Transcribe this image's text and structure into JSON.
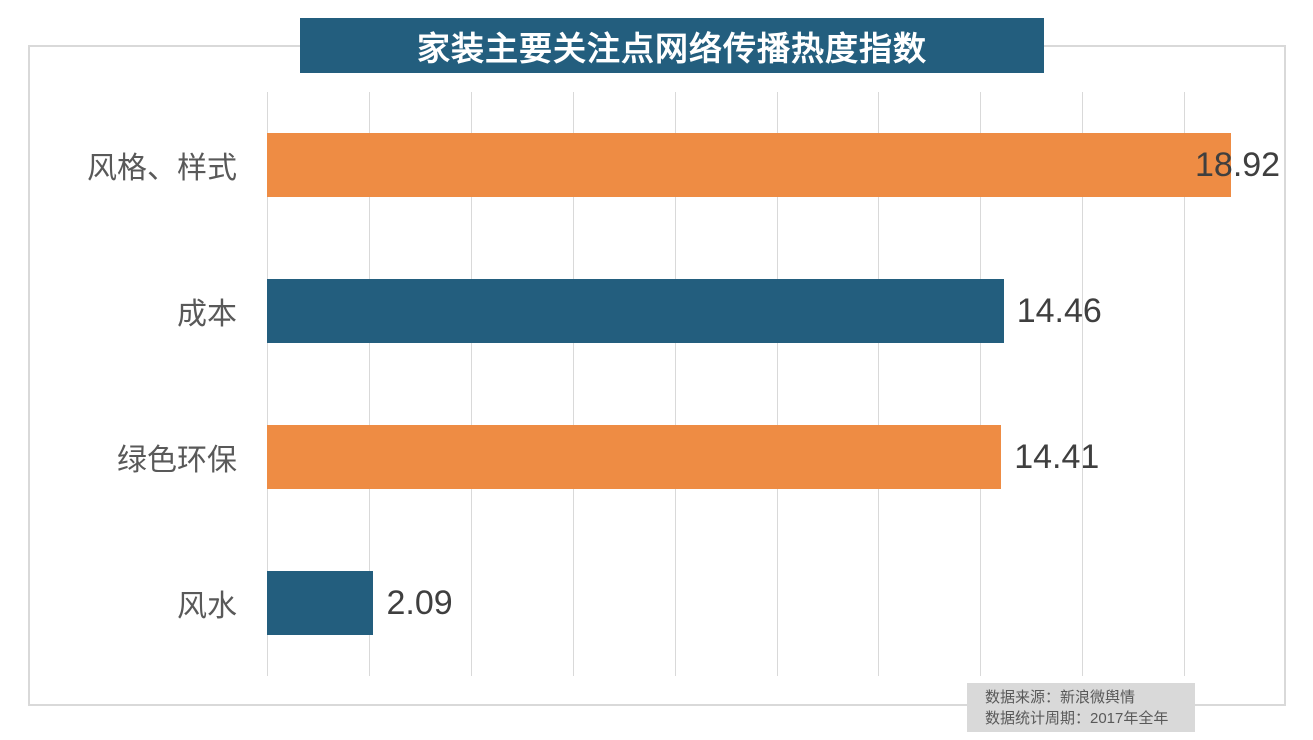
{
  "title": "家装主要关注点网络传播热度指数",
  "source": {
    "line1": "数据来源：新浪微舆情",
    "line2": "数据统计周期：2017年全年"
  },
  "colors": {
    "title_bg": "#235E7E",
    "title_text": "#FFFFFF",
    "teal": "#235E7E",
    "orange": "#EE8C44",
    "grid": "#D9D9D9",
    "category_text": "#595959",
    "value_text": "#3F3F3F",
    "source_bg": "#D9D9D9",
    "source_text": "#595959",
    "frame_border": "#D9D9D9"
  },
  "chart_data": {
    "type": "bar",
    "orientation": "horizontal",
    "title": "家装主要关注点网络传播热度指数",
    "categories": [
      "风格、样式",
      "成本",
      "绿色环保",
      "风水"
    ],
    "values": [
      18.92,
      14.46,
      14.41,
      2.09
    ],
    "value_labels": [
      "18.92",
      "14.46",
      "14.41",
      "2.09"
    ],
    "bar_colors": [
      "#EE8C44",
      "#235E7E",
      "#EE8C44",
      "#235E7E"
    ],
    "xlabel": "",
    "ylabel": "",
    "xlim": [
      0,
      20
    ],
    "gridline_step": 2,
    "grid": true,
    "legend": false
  }
}
